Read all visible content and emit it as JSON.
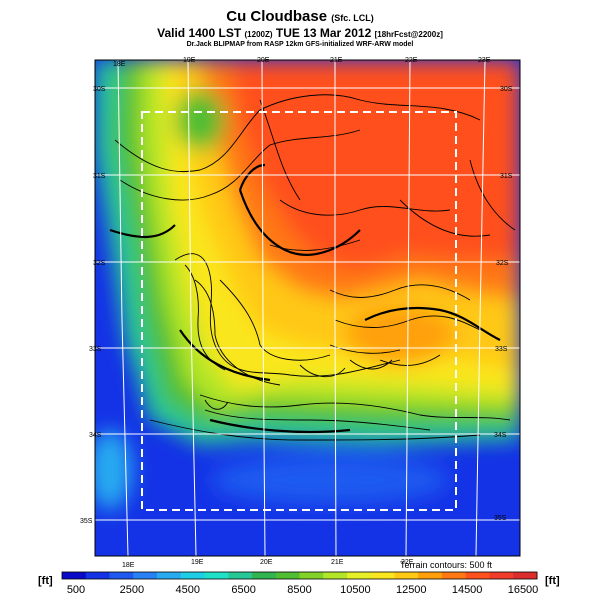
{
  "title": {
    "main": "Cu Cloudbase",
    "main_suffix": "(Sfc. LCL)",
    "line2": "Valid 1400 LST",
    "line2_utc": "(1200Z)",
    "line2_date": "TUE 13 Mar 2012",
    "line2_fcst": "[18hrFcst@2200z]",
    "line3": "Dr.Jack BLIPMAP from RASP 12km GFS-initialized WRF-ARW model"
  },
  "map": {
    "lon_labels_top": [
      "18E",
      "19E",
      "20E",
      "21E",
      "22E",
      "23E"
    ],
    "lon_labels_bottom": [
      "18E",
      "19E",
      "20E",
      "21E",
      "22E"
    ],
    "lat_labels_left": [
      "30S",
      "31S",
      "32S",
      "33S",
      "34S",
      "35S"
    ],
    "lat_labels_right": [
      "30S",
      "31S",
      "32S",
      "33S",
      "34S",
      "35S"
    ],
    "terrain_note": "Terrain contours: 500 ft"
  },
  "colorbar": {
    "unit_left": "[ft]",
    "unit_right": "[ft]",
    "tick_labels": [
      "500",
      "2500",
      "4500",
      "6500",
      "8500",
      "10500",
      "12500",
      "14500",
      "16500"
    ],
    "colors": [
      "#0a0ac8",
      "#1432e6",
      "#1e5af0",
      "#2882f5",
      "#28aaf0",
      "#1ecde6",
      "#1ee1c8",
      "#28c896",
      "#32b450",
      "#50be32",
      "#82d228",
      "#b4e628",
      "#e6f028",
      "#fae61e",
      "#ffc814",
      "#ffa00a",
      "#ff7814",
      "#ff501e",
      "#f03c28",
      "#dc2d2d"
    ]
  }
}
